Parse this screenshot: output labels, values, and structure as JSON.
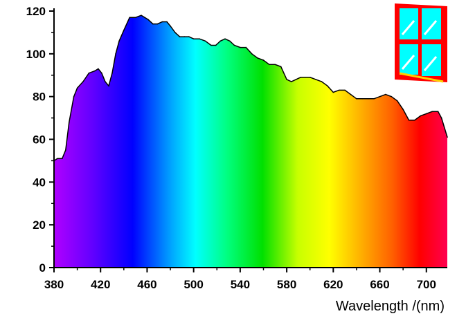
{
  "chart_data": {
    "type": "area",
    "xlabel": "Wavelength /(nm)",
    "ylabel": "",
    "xlim": [
      380,
      718
    ],
    "ylim": [
      0,
      120
    ],
    "x_ticks": [
      380,
      420,
      460,
      500,
      540,
      580,
      620,
      660,
      700
    ],
    "y_ticks": [
      0,
      20,
      40,
      60,
      80,
      100,
      120
    ],
    "grid": false,
    "fill": "visible-spectrum gradient",
    "series": [
      {
        "x": [
          380,
          383,
          387,
          390,
          393,
          397,
          400,
          405,
          410,
          415,
          418,
          421,
          424,
          427,
          430,
          433,
          436,
          440,
          445,
          450,
          455,
          458,
          461,
          465,
          469,
          473,
          477,
          480,
          484,
          488,
          492,
          496,
          500,
          505,
          510,
          515,
          519,
          523,
          527,
          531,
          535,
          540,
          545,
          550,
          555,
          560,
          565,
          570,
          575,
          580,
          584,
          588,
          592,
          596,
          600,
          605,
          610,
          615,
          620,
          625,
          630,
          635,
          640,
          645,
          650,
          655,
          660,
          665,
          670,
          675,
          680,
          685,
          690,
          695,
          700,
          705,
          710,
          713,
          718
        ],
        "values": [
          50,
          51,
          51,
          55,
          68,
          80,
          84,
          87,
          91,
          92,
          93,
          91,
          87,
          85,
          91,
          100,
          106,
          111,
          117,
          117,
          118,
          117,
          116,
          114,
          114,
          115,
          115,
          113,
          110,
          108,
          108,
          108,
          107,
          107,
          106,
          104,
          104,
          106,
          107,
          106,
          104,
          103,
          103,
          100,
          98,
          97,
          95,
          95,
          94,
          88,
          87,
          88,
          89,
          89,
          89,
          88,
          87,
          85,
          82,
          83,
          83,
          81,
          79,
          79,
          79,
          79,
          80,
          81,
          80,
          78,
          74,
          69,
          69,
          71,
          72,
          73,
          73,
          70,
          61
        ]
      }
    ]
  },
  "icon": {
    "name": "window-icon",
    "frame_color": "#ff0000",
    "glass_color": "#00ffff"
  }
}
